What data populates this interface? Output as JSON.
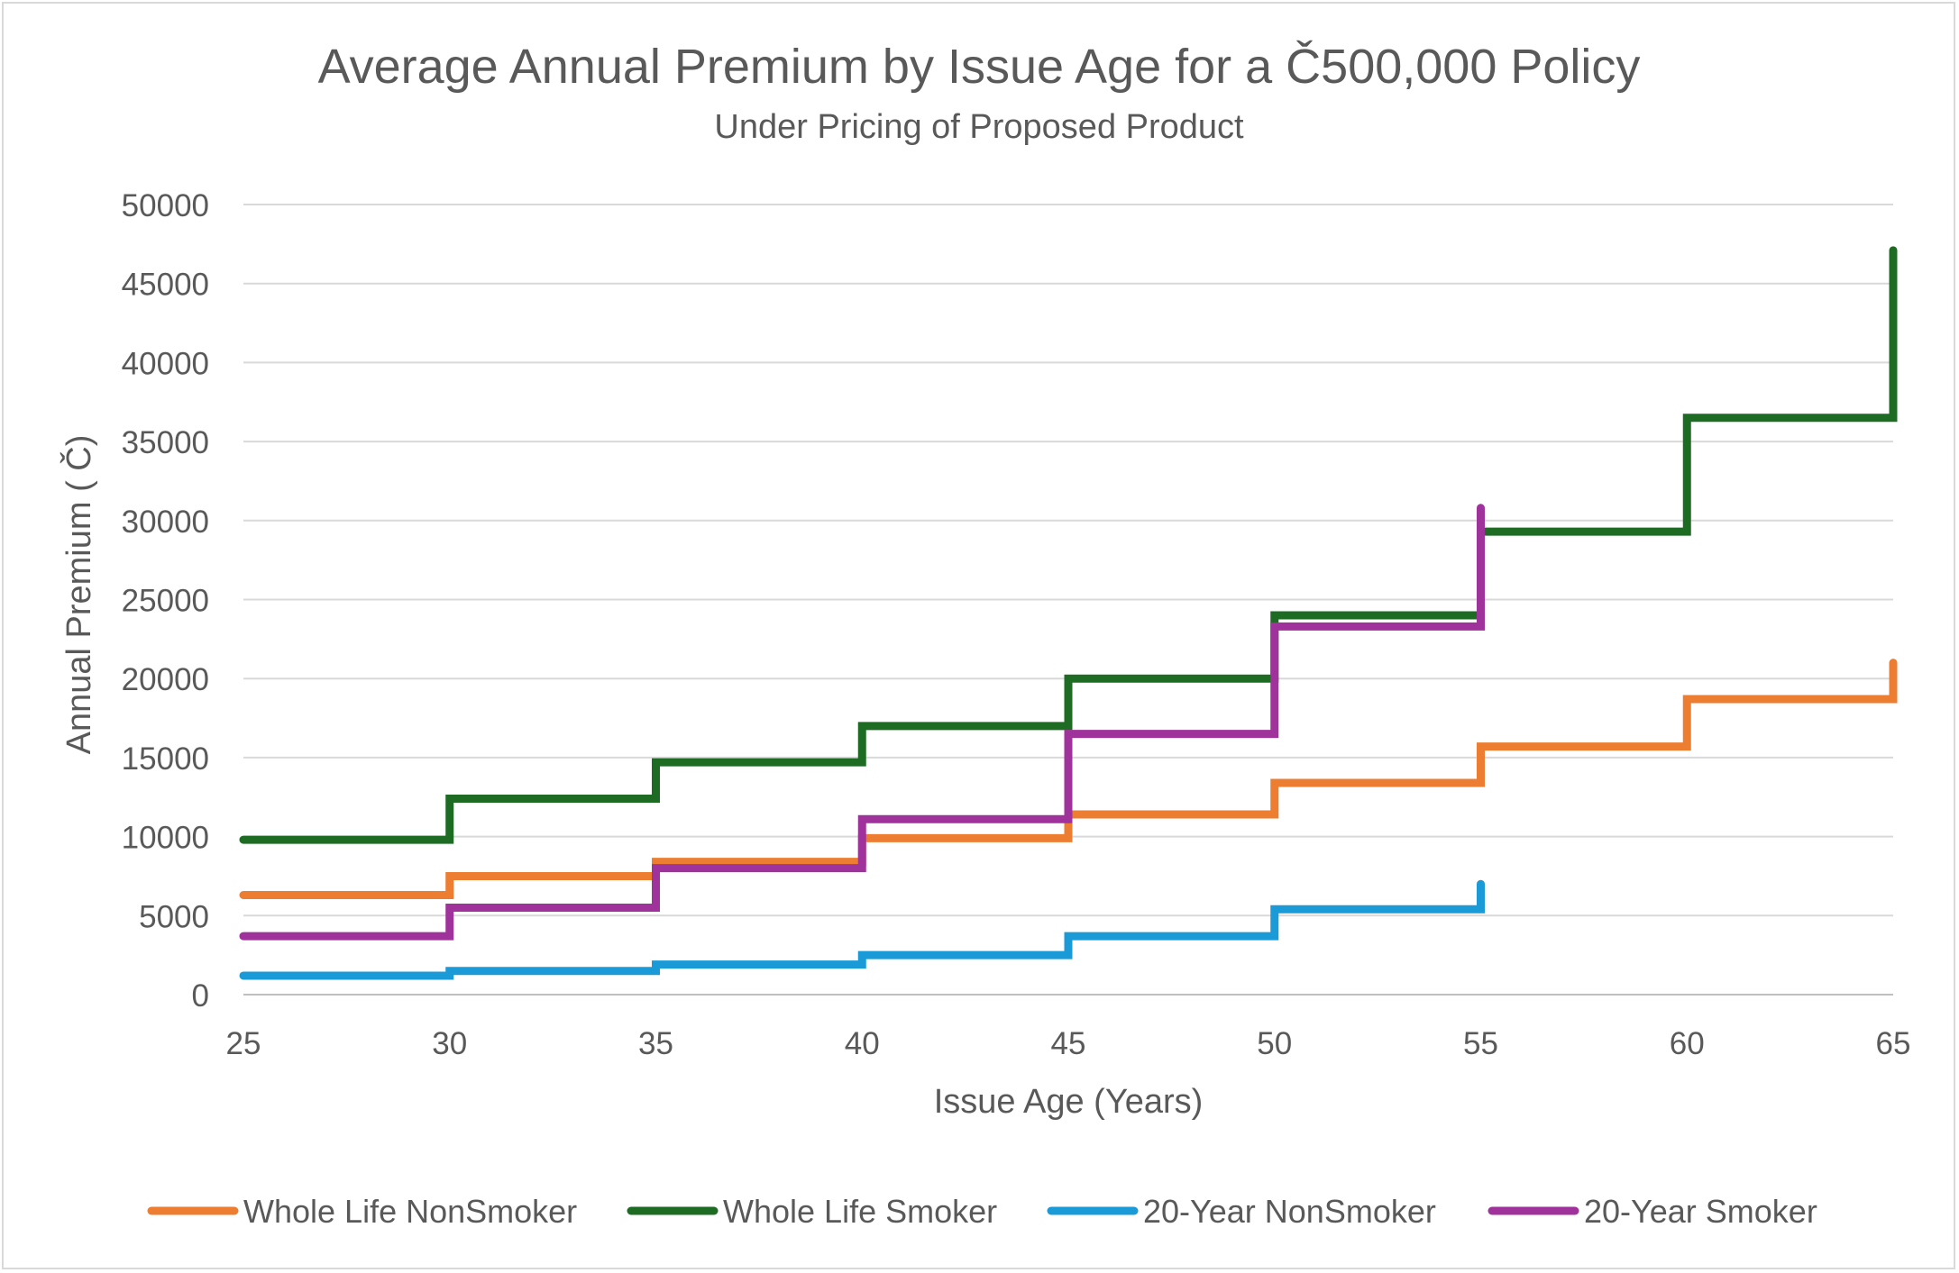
{
  "chart_data": {
    "type": "line",
    "step": true,
    "title": "Average Annual Premium by Issue Age for a Č500,000 Policy",
    "subtitle": "Under Pricing of Proposed Product",
    "xlabel": "Issue Age (Years)",
    "ylabel": "Annual Premium ( Č)",
    "xlim": [
      25,
      65
    ],
    "ylim": [
      0,
      50000
    ],
    "x_ticks": [
      25,
      30,
      35,
      40,
      45,
      50,
      55,
      60,
      65
    ],
    "y_ticks": [
      0,
      5000,
      10000,
      15000,
      20000,
      25000,
      30000,
      35000,
      40000,
      45000,
      50000
    ],
    "grid": true,
    "legend_position": "bottom",
    "series": [
      {
        "name": "Whole Life NonSmoker",
        "color": "#ED7D31",
        "x": [
          25,
          30,
          35,
          40,
          45,
          50,
          55,
          60,
          65
        ],
        "y": [
          6300,
          7500,
          8400,
          9900,
          11400,
          13400,
          15700,
          18700,
          21000
        ]
      },
      {
        "name": "Whole Life Smoker",
        "color": "#1E6B23",
        "x": [
          25,
          30,
          35,
          40,
          45,
          50,
          55,
          60,
          65
        ],
        "y": [
          9800,
          12400,
          14700,
          17000,
          20000,
          24000,
          29300,
          36500,
          47100
        ]
      },
      {
        "name": "20-Year NonSmoker",
        "color": "#1A9BD7",
        "x": [
          25,
          30,
          35,
          40,
          45,
          50,
          55
        ],
        "y": [
          1200,
          1500,
          1900,
          2500,
          3700,
          5400,
          7000
        ]
      },
      {
        "name": "20-Year Smoker",
        "color": "#A0329B",
        "x": [
          25,
          30,
          35,
          40,
          45,
          50,
          55
        ],
        "y": [
          3700,
          5500,
          8000,
          11100,
          16500,
          23300,
          30800
        ]
      }
    ]
  }
}
